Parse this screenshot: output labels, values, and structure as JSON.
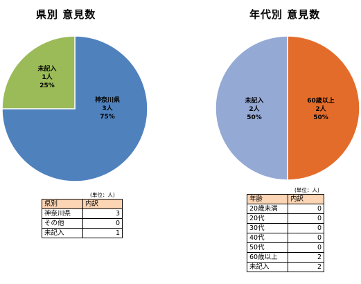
{
  "chart_data": [
    {
      "type": "pie",
      "title": "県別 意見数",
      "categories": [
        "神奈川県",
        "未記入"
      ],
      "values": [
        3,
        1
      ],
      "unit_label": "人",
      "percent_labels": [
        "75%",
        "25%"
      ],
      "colors": [
        "#4f81bd",
        "#9bbb59"
      ],
      "legend": "none"
    },
    {
      "type": "pie",
      "title": "年代別 意見数",
      "categories": [
        "60歳以上",
        "未記入"
      ],
      "values": [
        2,
        2
      ],
      "unit_label": "人",
      "percent_labels": [
        "50%",
        "50%"
      ],
      "colors": [
        "#e46c2a",
        "#95a9d5"
      ],
      "legend": "none"
    },
    {
      "type": "table",
      "unit_note": "(単位：人)",
      "headers": [
        "県別",
        "内訳"
      ],
      "rows": [
        [
          "神奈川県",
          3
        ],
        [
          "その他",
          0
        ],
        [
          "未記入",
          1
        ]
      ]
    },
    {
      "type": "table",
      "unit_note": "(単位：人)",
      "headers": [
        "年齢",
        "内訳"
      ],
      "rows": [
        [
          "20歳未満",
          0
        ],
        [
          "20代",
          0
        ],
        [
          "30代",
          0
        ],
        [
          "40代",
          0
        ],
        [
          "50代",
          0
        ],
        [
          "60歳以上",
          2
        ],
        [
          "未記入",
          2
        ]
      ]
    }
  ]
}
